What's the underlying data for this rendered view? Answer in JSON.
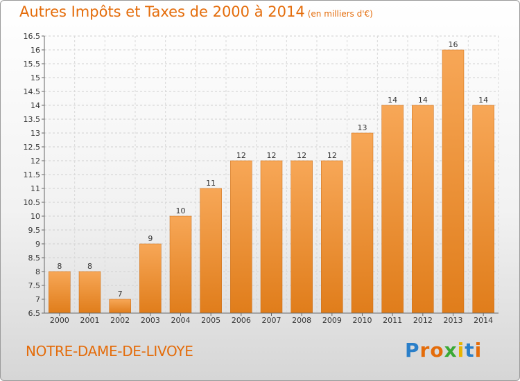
{
  "title": "Autres Impôts et Taxes de 2000 à 2014",
  "subtitle": "(en milliers d'€)",
  "commune": "NOTRE-DAME-DE-LIVOYE",
  "logo": {
    "text": "Proxiti",
    "letters": [
      "P",
      "r",
      "o",
      "x",
      "i",
      "t",
      "i"
    ],
    "colors": [
      "#2a7fc9",
      "#e46c0a",
      "#e46c0a",
      "#3aa935",
      "#e8b400",
      "#2a7fc9",
      "#e46c0a"
    ]
  },
  "colors": {
    "accent": "#e46c0a",
    "bar_light": "#f7a757",
    "bar_dark": "#e07d1b"
  },
  "chart_data": {
    "type": "bar",
    "categories": [
      "2000",
      "2001",
      "2002",
      "2003",
      "2004",
      "2005",
      "2006",
      "2007",
      "2008",
      "2009",
      "2010",
      "2011",
      "2012",
      "2013",
      "2014"
    ],
    "values": [
      8,
      8,
      7,
      9,
      10,
      11,
      12,
      12,
      12,
      12,
      13,
      14,
      14,
      16,
      14
    ],
    "ylim": [
      6.5,
      16.5
    ],
    "yticks": [
      "6.5",
      "7",
      "7.5",
      "8",
      "8.5",
      "9",
      "9.5",
      "10",
      "10.5",
      "11",
      "11.5",
      "12",
      "12.5",
      "13",
      "13.5",
      "14",
      "14.5",
      "15",
      "15.5",
      "16",
      "16.5"
    ],
    "grid": true
  }
}
